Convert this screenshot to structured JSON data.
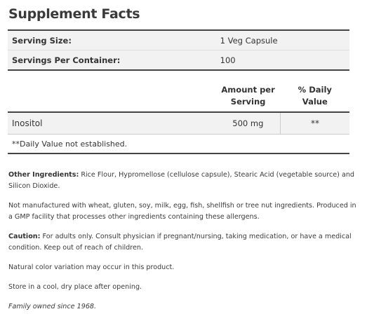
{
  "title": "Supplement Facts",
  "serving": {
    "size_label": "Serving Size:",
    "size_value": "1 Veg Capsule",
    "per_container_label": "Servings Per Container:",
    "per_container_value": "100"
  },
  "table_header": {
    "amount_line1": "Amount per",
    "amount_line2": "Serving",
    "daily_value": "% Daily Value"
  },
  "ingredients": [
    {
      "name": "Inositol",
      "amount": "500 mg",
      "dv": "**"
    }
  ],
  "footnote": "**Daily Value not established.",
  "other_ingredients": {
    "label": "Other Ingredients:",
    "text": " Rice Flour, Hypromellose (cellulose capsule), Stearic Acid (vegetable source) and Silicon Dioxide."
  },
  "allergen_statement": "Not manufactured with wheat, gluten, soy, milk, egg, fish, shellfish or tree nut ingredients. Produced in a GMP facility that processes other ingredients containing these allergens.",
  "caution": {
    "label": "Caution:",
    "text": " For adults only. Consult physician if pregnant/nursing, taking medication, or have a medical condition. Keep out of reach of children."
  },
  "color_note": "Natural color variation may occur in this product.",
  "storage": "Store in a cool, dry place after opening.",
  "tagline": "Family owned since 1968."
}
